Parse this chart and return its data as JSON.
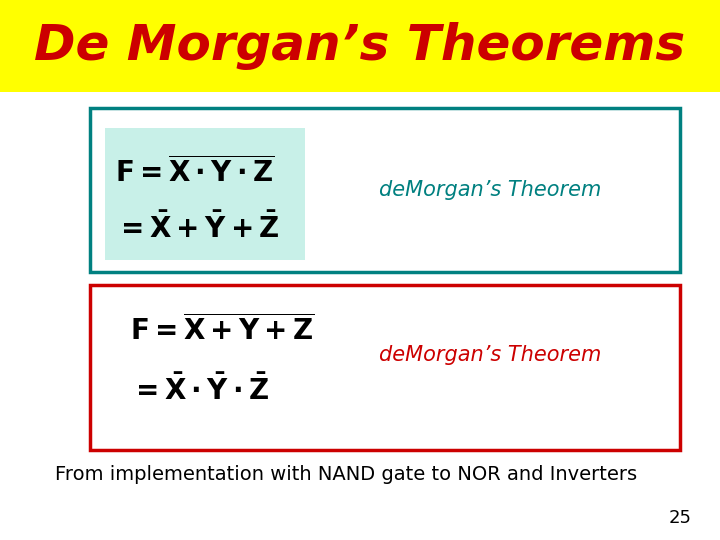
{
  "title": "De Morgan’s Theorems",
  "title_color": "#cc0000",
  "title_bg": "#ffff00",
  "title_fontsize": 36,
  "box1_border_color": "#008080",
  "box1_bg": "#c8f0e8",
  "box1_label": "deMorgan’s Theorem",
  "box1_label_color": "#008080",
  "box2_border_color": "#cc0000",
  "box2_bg": "#ffffff",
  "box2_label": "deMorgan’s Theorem",
  "box2_label_color": "#cc0000",
  "footer_text": "From implementation with NAND gate to NOR and Inverters",
  "footer_color": "#000000",
  "page_number": "25",
  "bg_color": "#ffffff"
}
